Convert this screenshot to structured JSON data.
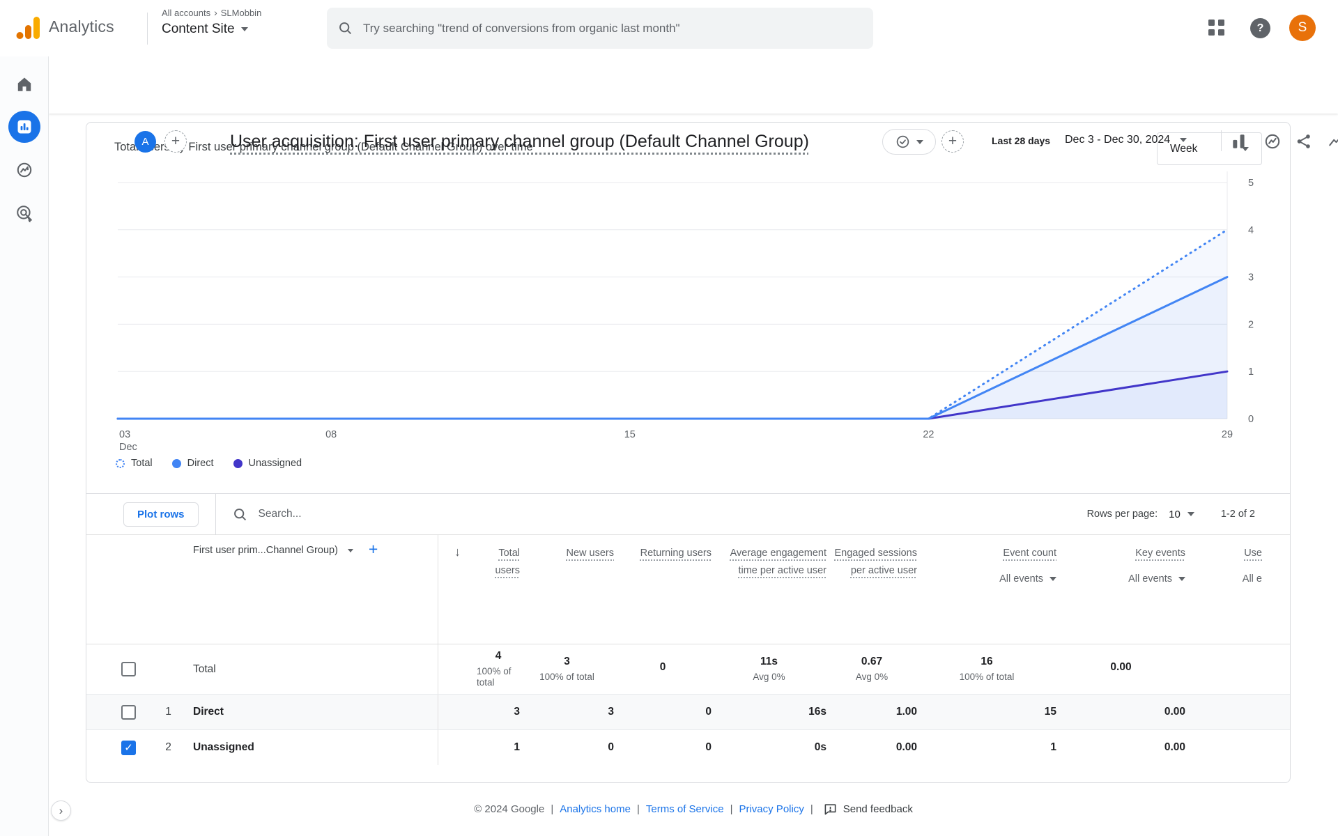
{
  "header": {
    "product": "Analytics",
    "breadcrumb_accounts": "All accounts",
    "breadcrumb_org": "SLMobbin",
    "property_name": "Content Site",
    "search_placeholder": "Try searching \"trend of conversions from organic last month\"",
    "avatar_letter": "S"
  },
  "report_header": {
    "badge_letter": "A",
    "title": "User acquisition: First user primary channel group (Default Channel Group)",
    "date_preset": "Last 28 days",
    "date_range": "Dec 3 - Dec 30, 2024"
  },
  "chart_card": {
    "title": "Total users by First user primary channel group (Default Channel Group) over time",
    "interval": "Week"
  },
  "chart_data": {
    "type": "line",
    "title": "Total users by First user primary channel group (Default Channel Group) over time",
    "x_unit": "day of December 2024",
    "x": [
      3,
      8,
      15,
      22,
      29
    ],
    "x_tick_labels": [
      "03",
      "08",
      "15",
      "22",
      "29"
    ],
    "x_first_tick_sub": "Dec",
    "ylim": [
      0,
      5
    ],
    "yticks": [
      0,
      1,
      2,
      3,
      4,
      5
    ],
    "grid": true,
    "legend_position": "bottom-left",
    "axis_color": "#5f6368",
    "grid_color": "#e8eaed",
    "fill_color": "rgba(66,133,244,0.055)",
    "series": [
      {
        "name": "Total",
        "color": "#4285f4",
        "style": "dotted",
        "values": [
          0,
          0,
          0,
          0,
          4
        ]
      },
      {
        "name": "Direct",
        "color": "#4285f4",
        "style": "solid",
        "values": [
          0,
          0,
          0,
          0,
          3
        ]
      },
      {
        "name": "Unassigned",
        "color": "#4236c9",
        "style": "solid",
        "values": [
          0,
          0,
          0,
          0,
          1
        ]
      }
    ]
  },
  "table": {
    "plot_rows": "Plot rows",
    "search_placeholder": "Search...",
    "rows_per_page_label": "Rows per page:",
    "rows_per_page_value": "10",
    "page_info": "1-2 of 2",
    "select_all_state": "indeterminate",
    "dimension_header": "First user prim...Channel Group)",
    "columns": [
      {
        "label": "Total users"
      },
      {
        "label": "New users"
      },
      {
        "label": "Returning users"
      },
      {
        "label": "Average engagement time per active user"
      },
      {
        "label": "Engaged sessions per active user"
      },
      {
        "label": "Event count",
        "filter": "All events"
      },
      {
        "label": "Key events",
        "filter": "All events"
      },
      {
        "label": "Use",
        "filter": "All e"
      }
    ],
    "total_row": {
      "label": "Total",
      "checked": false,
      "cells": [
        {
          "value": "4",
          "sub": "100% of total"
        },
        {
          "value": "3",
          "sub": "100% of total"
        },
        {
          "value": "0",
          "sub": ""
        },
        {
          "value": "11s",
          "sub": "Avg 0%"
        },
        {
          "value": "0.67",
          "sub": "Avg 0%"
        },
        {
          "value": "16",
          "sub": "100% of total"
        },
        {
          "value": "0.00",
          "sub": ""
        }
      ]
    },
    "rows": [
      {
        "index": "1",
        "name": "Direct",
        "checked": false,
        "cells": [
          "3",
          "3",
          "0",
          "16s",
          "1.00",
          "15",
          "0.00"
        ]
      },
      {
        "index": "2",
        "name": "Unassigned",
        "checked": true,
        "cells": [
          "1",
          "0",
          "0",
          "0s",
          "0.00",
          "1",
          "0.00"
        ]
      }
    ]
  },
  "footer": {
    "copyright": "© 2024 Google",
    "separator": "|",
    "links": [
      "Analytics home",
      "Terms of Service",
      "Privacy Policy"
    ],
    "send_feedback": "Send feedback"
  }
}
